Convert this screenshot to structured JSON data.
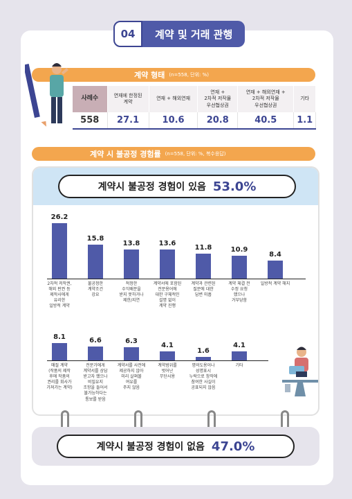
{
  "section": {
    "number": "04",
    "title": "계약 및 거래 관행"
  },
  "contract_types": {
    "title": "계약 형태",
    "meta": "(n=558, 단위: %)",
    "row_header": "사례수",
    "count": "558",
    "columns": [
      {
        "label": "연재에 한정된\n계약",
        "value": "27.1"
      },
      {
        "label": "연재 + 해외연재",
        "value": "10.6"
      },
      {
        "label": "연재 +\n2차적 저작물\n우선협상권",
        "value": "20.8"
      },
      {
        "label": "연재 + 해외연재 +\n2차적 저작물\n우선협상권",
        "value": "40.5"
      },
      {
        "label": "기타",
        "value": "1.1"
      }
    ]
  },
  "unfair": {
    "title": "계약 시 불공정 경험률",
    "meta": "(n=558, 단위: %, 복수응답)",
    "yes_label": "계약시 불공정 경험이 있음",
    "yes_pct": "53.0%",
    "no_label": "계약시 불공정 경험이 없음",
    "no_pct": "47.0%"
  },
  "chart_data": {
    "type": "bar",
    "rows": [
      {
        "categories": [
          "2차적 저작권,\n해외 판권 등\n제작사에게\n유리한\n일방적 계약",
          "불공정한\n계약조건\n강요",
          "적정한\n수익배분을\n받지 못하거나\n제한/지연",
          "계약서에 포함된\n전문용어에\n대한 구체적인\n설명 없이\n계약 진행",
          "계약과 관련된\n질문에 대한\n답변 미흡",
          "계약 체결 전\n수정 요청\n했으나\n거부당함",
          "일방적 계약 해지"
        ],
        "values": [
          26.2,
          15.8,
          13.8,
          13.6,
          11.8,
          10.9,
          8.4
        ],
        "labels": [
          "26.2",
          "15.8",
          "13.8",
          "13.6",
          "11.8",
          "10.9",
          "8.4"
        ]
      },
      {
        "categories": [
          "매절 계약\n(작품의 제작\n후에 작품의\n권리를 회사가\n가져가는 계약)",
          "전문가에게\n계약서를 상담\n받고자 했으나\n비밀유지\n조항을 들어서\n불가능하다는\n통보를 받음",
          "계약서를 사전에\n제공하지 않아\n미리 살펴볼\n여유를\n주지 않음",
          "계약범위를\n벗어난\n무단사용",
          "명의도용이나\n성명표시\n누락으로 창작에\n참여한 사실이\n공표되지 않음",
          "기타"
        ],
        "values": [
          8.1,
          6.6,
          6.3,
          4.1,
          1.6,
          4.1
        ],
        "labels": [
          "8.1",
          "6.6",
          "6.3",
          "4.1",
          "1.6",
          "4.1"
        ]
      }
    ],
    "ylim": [
      0,
      28
    ]
  }
}
